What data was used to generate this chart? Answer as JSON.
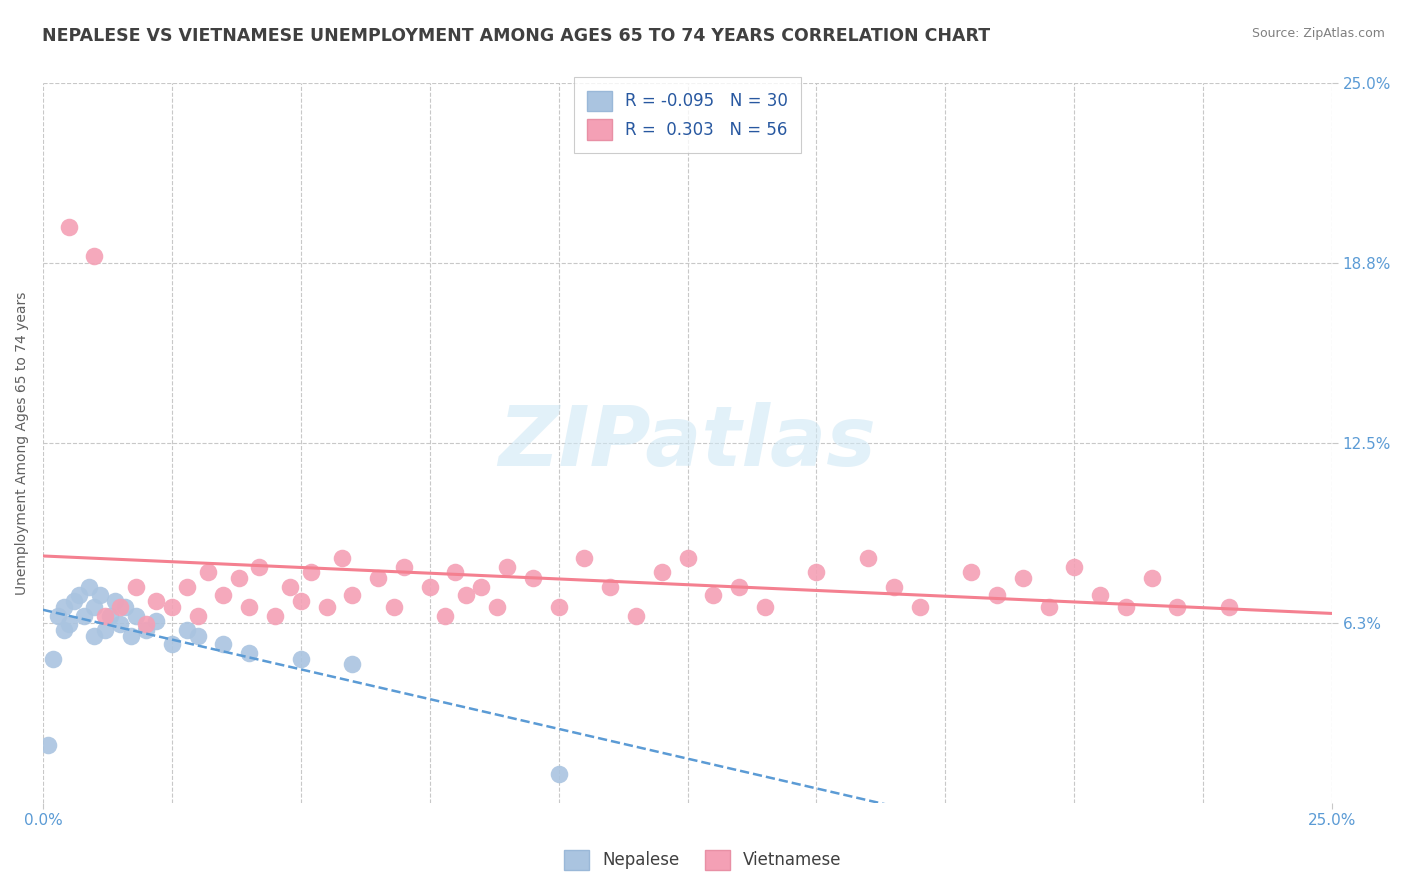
{
  "title": "NEPALESE VS VIETNAMESE UNEMPLOYMENT AMONG AGES 65 TO 74 YEARS CORRELATION CHART",
  "source": "Source: ZipAtlas.com",
  "ylabel_label": "Unemployment Among Ages 65 to 74 years",
  "nepalese_R": "-0.095",
  "nepalese_N": "30",
  "vietnamese_R": "0.303",
  "vietnamese_N": "56",
  "blue_scatter_color": "#aac4e0",
  "pink_scatter_color": "#f4a0b5",
  "blue_line_color": "#5b9bd5",
  "pink_line_color": "#f48090",
  "title_color": "#404040",
  "source_color": "#808080",
  "axis_label_color": "#606060",
  "tick_color": "#5b9bd5",
  "grid_color": "#c8c8c8",
  "watermark": "ZIPatlas",
  "watermark_color": "#d0e8f5",
  "xlim": [
    0.0,
    0.25
  ],
  "ylim": [
    0.0,
    0.25
  ],
  "nepalese_x": [
    0.001,
    0.002,
    0.003,
    0.004,
    0.004,
    0.005,
    0.006,
    0.007,
    0.008,
    0.009,
    0.01,
    0.01,
    0.011,
    0.012,
    0.013,
    0.014,
    0.015,
    0.016,
    0.017,
    0.018,
    0.02,
    0.022,
    0.025,
    0.028,
    0.03,
    0.035,
    0.04,
    0.05,
    0.06,
    0.1
  ],
  "nepalese_y": [
    0.02,
    0.05,
    0.065,
    0.06,
    0.068,
    0.062,
    0.07,
    0.072,
    0.065,
    0.075,
    0.058,
    0.068,
    0.072,
    0.06,
    0.065,
    0.07,
    0.062,
    0.068,
    0.058,
    0.065,
    0.06,
    0.063,
    0.055,
    0.06,
    0.058,
    0.055,
    0.052,
    0.05,
    0.048,
    0.01
  ],
  "vietnamese_x": [
    0.005,
    0.01,
    0.012,
    0.015,
    0.018,
    0.02,
    0.022,
    0.025,
    0.028,
    0.03,
    0.032,
    0.035,
    0.038,
    0.04,
    0.042,
    0.045,
    0.048,
    0.05,
    0.052,
    0.055,
    0.058,
    0.06,
    0.065,
    0.068,
    0.07,
    0.075,
    0.078,
    0.08,
    0.082,
    0.085,
    0.088,
    0.09,
    0.095,
    0.1,
    0.105,
    0.11,
    0.115,
    0.12,
    0.125,
    0.13,
    0.135,
    0.14,
    0.15,
    0.16,
    0.165,
    0.17,
    0.18,
    0.185,
    0.19,
    0.195,
    0.2,
    0.205,
    0.21,
    0.215,
    0.22,
    0.23
  ],
  "vietnamese_y": [
    0.2,
    0.19,
    0.065,
    0.068,
    0.075,
    0.062,
    0.07,
    0.068,
    0.075,
    0.065,
    0.08,
    0.072,
    0.078,
    0.068,
    0.082,
    0.065,
    0.075,
    0.07,
    0.08,
    0.068,
    0.085,
    0.072,
    0.078,
    0.068,
    0.082,
    0.075,
    0.065,
    0.08,
    0.072,
    0.075,
    0.068,
    0.082,
    0.078,
    0.068,
    0.085,
    0.075,
    0.065,
    0.08,
    0.085,
    0.072,
    0.075,
    0.068,
    0.08,
    0.085,
    0.075,
    0.068,
    0.08,
    0.072,
    0.078,
    0.068,
    0.082,
    0.072,
    0.068,
    0.078,
    0.068,
    0.068
  ]
}
